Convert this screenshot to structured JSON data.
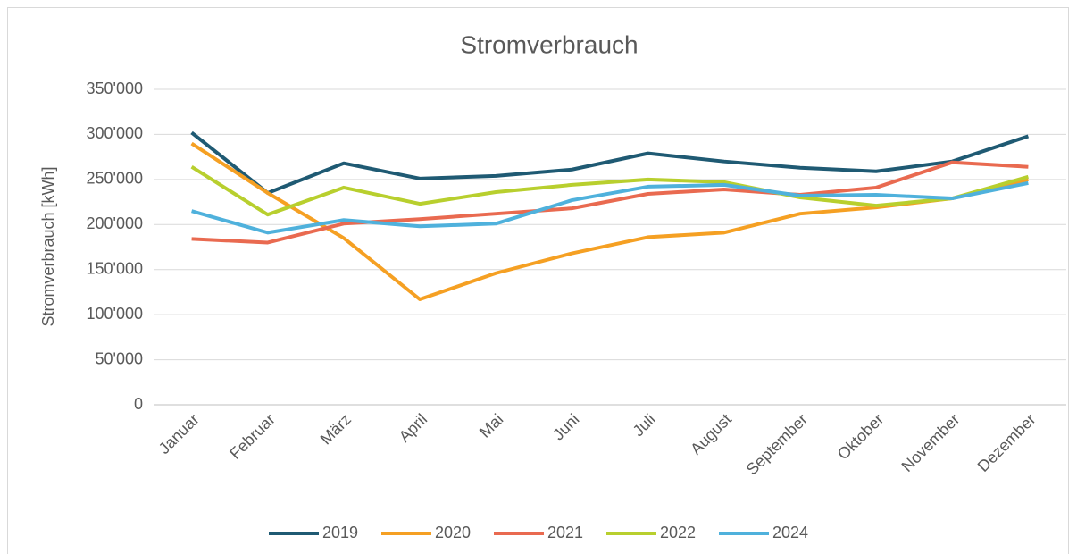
{
  "chart_data": {
    "type": "line",
    "title": "Stromverbrauch",
    "y_label": "Stromverbrauch [kWh]",
    "categories": [
      "Januar",
      "Februar",
      "März",
      "April",
      "Mai",
      "Juni",
      "Juli",
      "August",
      "September",
      "Oktober",
      "November",
      "Dezember"
    ],
    "series": [
      {
        "name": "2019",
        "color": "#1f5a73",
        "values": [
          302000,
          235000,
          268000,
          251000,
          254000,
          261000,
          279000,
          270000,
          263000,
          259000,
          270000,
          298000
        ]
      },
      {
        "name": "2020",
        "color": "#f5a023",
        "values": [
          290000,
          235000,
          185000,
          117000,
          146000,
          168000,
          186000,
          191000,
          212000,
          219000,
          229000,
          250000
        ]
      },
      {
        "name": "2021",
        "color": "#e96a50",
        "values": [
          184000,
          180000,
          201000,
          206000,
          212000,
          218000,
          234000,
          239000,
          233000,
          241000,
          269000,
          264000
        ]
      },
      {
        "name": "2022",
        "color": "#b8cf2e",
        "values": [
          264000,
          211000,
          241000,
          223000,
          236000,
          244000,
          250000,
          247000,
          230000,
          221000,
          229000,
          253000
        ]
      },
      {
        "name": "2024",
        "color": "#4fb1dc",
        "values": [
          215000,
          191000,
          205000,
          198000,
          201000,
          227000,
          242000,
          244000,
          232000,
          233000,
          229000,
          246000
        ]
      }
    ],
    "ylim": [
      0,
      350000
    ],
    "yticks": [
      0,
      {
        "value": 50000,
        "label": "50'000"
      },
      {
        "value": 100000,
        "label": "100'000"
      },
      {
        "value": 150000,
        "label": "150'000"
      },
      {
        "value": 200000,
        "label": "200'000"
      },
      {
        "value": 250000,
        "label": "250'000"
      },
      {
        "value": 300000,
        "label": "300'000"
      },
      {
        "value": 350000,
        "label": "350'000"
      }
    ],
    "grid": true,
    "legend": "bottom"
  }
}
